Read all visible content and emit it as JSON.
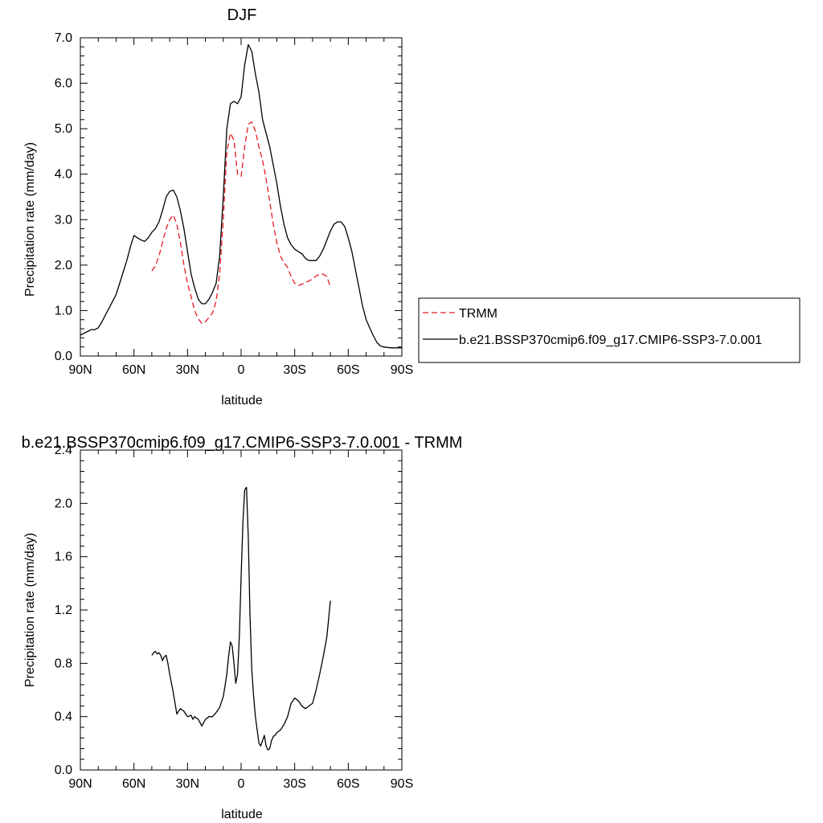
{
  "chart_data": [
    {
      "type": "line",
      "title": "DJF",
      "xlabel": "latitude",
      "ylabel": "Precipitation rate (mm/day)",
      "xlim": [
        90,
        -90
      ],
      "ylim": [
        0,
        7
      ],
      "x_ticks": [
        90,
        60,
        30,
        0,
        -30,
        -60,
        -90
      ],
      "x_tick_labels": [
        "90N",
        "60N",
        "30N",
        "0",
        "30S",
        "60S",
        "90S"
      ],
      "y_ticks": [
        0,
        1,
        2,
        3,
        4,
        5,
        6,
        7
      ],
      "y_tick_labels": [
        "0.0",
        "1.0",
        "2.0",
        "3.0",
        "4.0",
        "5.0",
        "6.0",
        "7.0"
      ],
      "grid": false,
      "legend": {
        "placement": "right",
        "entries": [
          "TRMM",
          "b.e21.BSSP370cmip6.f09_g17.CMIP6-SSP3-7.0.001"
        ]
      },
      "series": [
        {
          "name": "TRMM",
          "color": "#e8191e",
          "dash": "dashed",
          "x": [
            50,
            48,
            46,
            44,
            42,
            40,
            38,
            36,
            34,
            32,
            30,
            28,
            26,
            24,
            22,
            20,
            18,
            16,
            14,
            12,
            10,
            8,
            6,
            4,
            2,
            0,
            -2,
            -4,
            -6,
            -8,
            -10,
            -12,
            -14,
            -16,
            -18,
            -20,
            -22,
            -24,
            -26,
            -28,
            -30,
            -32,
            -34,
            -36,
            -38,
            -40,
            -42,
            -44,
            -46,
            -48,
            -50
          ],
          "y": [
            1.87,
            1.98,
            2.2,
            2.5,
            2.8,
            3.0,
            3.1,
            2.9,
            2.5,
            2.0,
            1.6,
            1.3,
            1.0,
            0.82,
            0.72,
            0.75,
            0.85,
            0.95,
            1.2,
            1.8,
            3.0,
            4.5,
            4.9,
            4.75,
            4.0,
            3.95,
            4.6,
            5.1,
            5.15,
            4.95,
            4.6,
            4.3,
            3.9,
            3.4,
            2.9,
            2.5,
            2.2,
            2.05,
            1.95,
            1.75,
            1.6,
            1.55,
            1.58,
            1.62,
            1.65,
            1.7,
            1.76,
            1.8,
            1.8,
            1.75,
            1.52
          ]
        },
        {
          "name": "b.e21.BSSP370cmip6.f09_g17.CMIP6-SSP3-7.0.001",
          "color": "#000000",
          "dash": "solid",
          "x": [
            90,
            88,
            86,
            84,
            82,
            80,
            78,
            76,
            74,
            72,
            70,
            68,
            66,
            64,
            62,
            60,
            58,
            56,
            54,
            52,
            50,
            48,
            46,
            44,
            42,
            40,
            38,
            36,
            34,
            32,
            30,
            28,
            26,
            24,
            22,
            20,
            18,
            16,
            14,
            12,
            10,
            8,
            6,
            4,
            2,
            0,
            -2,
            -4,
            -6,
            -8,
            -10,
            -12,
            -14,
            -16,
            -18,
            -20,
            -22,
            -24,
            -26,
            -28,
            -30,
            -32,
            -34,
            -36,
            -38,
            -40,
            -42,
            -44,
            -46,
            -48,
            -50,
            -52,
            -54,
            -56,
            -58,
            -60,
            -62,
            -64,
            -66,
            -68,
            -70,
            -72,
            -74,
            -76,
            -78,
            -80,
            -82,
            -84,
            -86,
            -88,
            -90
          ],
          "y": [
            0.46,
            0.5,
            0.54,
            0.58,
            0.58,
            0.62,
            0.75,
            0.9,
            1.05,
            1.2,
            1.35,
            1.6,
            1.85,
            2.1,
            2.4,
            2.65,
            2.6,
            2.55,
            2.52,
            2.6,
            2.72,
            2.8,
            2.95,
            3.2,
            3.5,
            3.62,
            3.65,
            3.5,
            3.2,
            2.8,
            2.3,
            1.8,
            1.5,
            1.25,
            1.15,
            1.15,
            1.25,
            1.4,
            1.6,
            2.2,
            3.5,
            5.0,
            5.55,
            5.6,
            5.55,
            5.7,
            6.4,
            6.85,
            6.7,
            6.2,
            5.8,
            5.2,
            4.9,
            4.6,
            4.2,
            3.8,
            3.3,
            2.9,
            2.6,
            2.45,
            2.35,
            2.3,
            2.25,
            2.15,
            2.1,
            2.1,
            2.1,
            2.2,
            2.35,
            2.55,
            2.75,
            2.9,
            2.95,
            2.95,
            2.85,
            2.6,
            2.3,
            1.9,
            1.5,
            1.1,
            0.8,
            0.62,
            0.45,
            0.3,
            0.22,
            0.2,
            0.19,
            0.18,
            0.18,
            0.18,
            0.18
          ]
        }
      ]
    },
    {
      "type": "line",
      "title": "b.e21.BSSP370cmip6.f09_g17.CMIP6-SSP3-7.0.001 - TRMM",
      "xlabel": "latitude",
      "ylabel": "Precipitation rate (mm/day)",
      "xlim": [
        90,
        -90
      ],
      "ylim": [
        0,
        2.4
      ],
      "x_ticks": [
        90,
        60,
        30,
        0,
        -30,
        -60,
        -90
      ],
      "x_tick_labels": [
        "90N",
        "60N",
        "30N",
        "0",
        "30S",
        "60S",
        "90S"
      ],
      "y_ticks": [
        0,
        0.4,
        0.8,
        1.2,
        1.6,
        2.0,
        2.4
      ],
      "y_tick_labels": [
        "0.0",
        "0.4",
        "0.8",
        "1.2",
        "1.6",
        "2.0",
        "2.4"
      ],
      "grid": false,
      "series": [
        {
          "color": "#000000",
          "dash": "solid",
          "x": [
            50,
            49,
            48,
            47,
            46,
            45,
            44,
            43,
            42,
            41,
            40,
            38,
            36,
            34,
            32,
            30,
            28,
            27,
            26,
            24,
            22,
            20,
            18,
            16,
            14,
            12,
            10,
            9,
            8,
            7,
            6,
            5,
            4,
            3,
            2,
            1,
            0,
            -1,
            -2,
            -3,
            -4,
            -5,
            -6,
            -7,
            -8,
            -9,
            -10,
            -11,
            -12,
            -13,
            -14,
            -15,
            -16,
            -17,
            -18,
            -19,
            -20,
            -22,
            -24,
            -26,
            -28,
            -30,
            -32,
            -34,
            -36,
            -38,
            -40,
            -42,
            -44,
            -46,
            -48,
            -50
          ],
          "y": [
            0.86,
            0.88,
            0.89,
            0.87,
            0.88,
            0.86,
            0.82,
            0.85,
            0.86,
            0.8,
            0.72,
            0.58,
            0.42,
            0.46,
            0.44,
            0.4,
            0.41,
            0.38,
            0.4,
            0.38,
            0.33,
            0.38,
            0.4,
            0.4,
            0.43,
            0.47,
            0.55,
            0.63,
            0.72,
            0.85,
            0.96,
            0.93,
            0.8,
            0.65,
            0.72,
            1.0,
            1.45,
            1.85,
            2.1,
            2.12,
            1.75,
            1.15,
            0.75,
            0.55,
            0.4,
            0.3,
            0.2,
            0.18,
            0.22,
            0.26,
            0.18,
            0.15,
            0.16,
            0.22,
            0.25,
            0.26,
            0.28,
            0.3,
            0.34,
            0.4,
            0.5,
            0.54,
            0.52,
            0.48,
            0.46,
            0.48,
            0.5,
            0.6,
            0.72,
            0.85,
            1.0,
            1.27
          ]
        }
      ]
    }
  ]
}
